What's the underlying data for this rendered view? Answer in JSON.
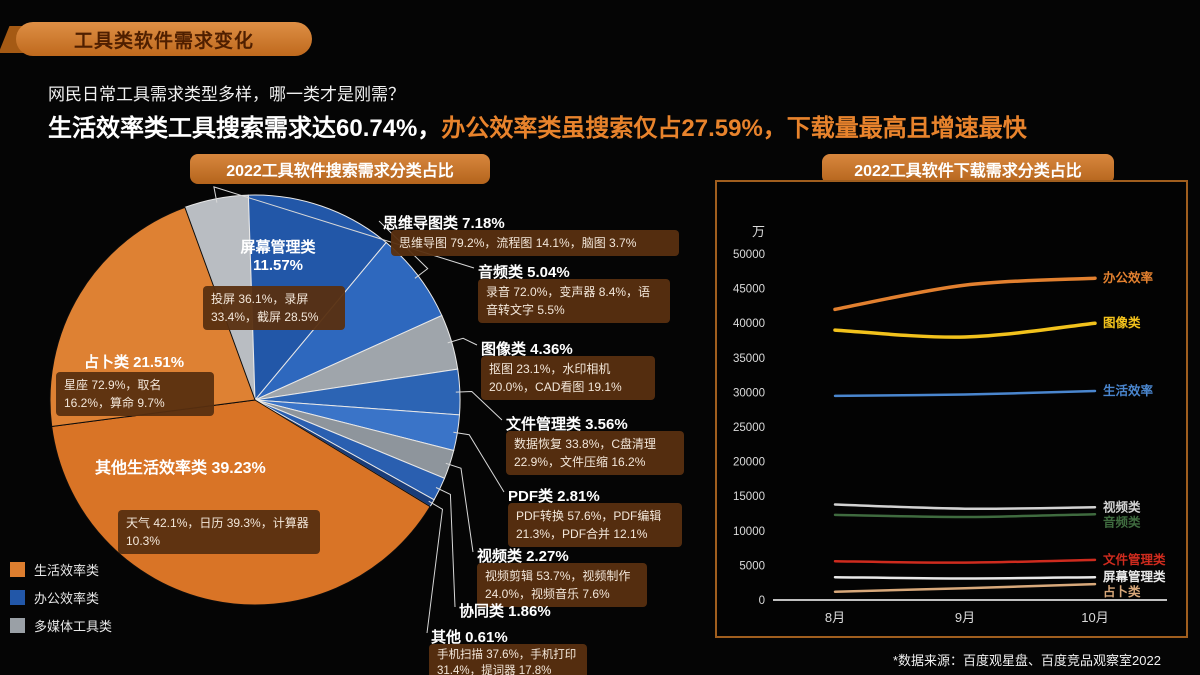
{
  "page": {
    "title_badge": "工具类软件需求变化",
    "subtitle": "网民日常工具需求类型多样，哪一类才是刚需？",
    "headline_white": "生活效率类工具搜索需求达60.74%，",
    "headline_orange": "办公效率类虽搜索仅占27.59%，下载量最高且增速最快",
    "source": "*数据来源：百度观星盘、百度竞品观察室2022"
  },
  "colors": {
    "accent_orange": "#dd7e2f",
    "office_blue": "#2257a8",
    "media_gray": "#9aa0a6",
    "callout_box": "#582f10"
  },
  "legend": [
    {
      "label": "生活效率类",
      "color": "#dd7e2f"
    },
    {
      "label": "办公效率类",
      "color": "#2257a8"
    },
    {
      "label": "多媒体工具类",
      "color": "#9aa0a6"
    }
  ],
  "chart_data": [
    {
      "type": "pie",
      "title": "2022工具软件搜索需求分类占比",
      "slices": [
        {
          "name": "音频类",
          "pct": 5.04,
          "group": "多媒体工具类",
          "color": "#b9bdc2",
          "label": "音频类 5.04%",
          "detail": "录音 72.0%，变声器 8.4%，语音转文字 5.5%"
        },
        {
          "name": "屏幕管理类",
          "pct": 11.57,
          "group": "办公效率类",
          "color": "#2257a8",
          "label": "屏幕管理类 11.57%",
          "detail": "投屏 36.1%，录屏 33.4%，截屏 28.5%"
        },
        {
          "name": "思维导图类",
          "pct": 7.18,
          "group": "办公效率类",
          "color": "#2e68be",
          "label": "思维导图类 7.18%",
          "detail": "思维导图 79.2%，流程图 14.1%，脑图 3.7%"
        },
        {
          "name": "图像类",
          "pct": 4.36,
          "group": "多媒体工具类",
          "color": "#9fa5ab",
          "label": "图像类 4.36%",
          "detail": "抠图 23.1%，水印相机 20.0%，CAD看图 19.1%"
        },
        {
          "name": "文件管理类",
          "pct": 3.56,
          "group": "办公效率类",
          "color": "#2c64b4",
          "label": "文件管理类 3.56%",
          "detail": "数据恢复 33.8%，C盘清理 22.9%，文件压缩 16.2%"
        },
        {
          "name": "PDF类",
          "pct": 2.81,
          "group": "办公效率类",
          "color": "#3a74c8",
          "label": "PDF类 2.81%",
          "detail": "PDF转换 57.6%，PDF编辑 21.3%，PDF合并 12.1%"
        },
        {
          "name": "视频类",
          "pct": 2.27,
          "group": "多媒体工具类",
          "color": "#8e959c",
          "label": "视频类 2.27%",
          "detail": "视频剪辑 53.7%，视频制作 24.0%，视频音乐 7.6%"
        },
        {
          "name": "协同类",
          "pct": 1.86,
          "group": "办公效率类",
          "color": "#2a5fb0",
          "label": "协同类 1.86%",
          "detail": ""
        },
        {
          "name": "其他",
          "pct": 0.61,
          "group": "办公效率类",
          "color": "#1a3c78",
          "label": "其他 0.61%",
          "detail": "手机扫描 37.6%，手机打印 31.4%，提词器 17.8%"
        },
        {
          "name": "其他生活效率类",
          "pct": 39.23,
          "group": "生活效率类",
          "color": "#d97426",
          "label": "其他生活效率类 39.23%",
          "detail": "天气 42.1%，日历 39.3%，计算器 10.3%"
        },
        {
          "name": "占卜类",
          "pct": 21.51,
          "group": "生活效率类",
          "color": "#de8133",
          "label": "占卜类 21.51%",
          "detail": "星座 72.9%，取名 16.2%，算命 9.7%"
        }
      ]
    },
    {
      "type": "line",
      "title": "2022工具软件下载需求分类占比",
      "ylabel": "万",
      "categories": [
        "8月",
        "9月",
        "10月"
      ],
      "ylim": [
        0,
        50000
      ],
      "yticks": [
        0,
        5000,
        10000,
        15000,
        20000,
        25000,
        30000,
        35000,
        40000,
        45000,
        50000
      ],
      "legend_position": "right-of-line-end",
      "grid": false,
      "series": [
        {
          "name": "办公效率",
          "color": "#e2802f",
          "lw": 3.5,
          "values": [
            42000,
            45500,
            46500
          ]
        },
        {
          "name": "图像类",
          "color": "#f2c21c",
          "lw": 3.5,
          "values": [
            39000,
            38000,
            40000
          ]
        },
        {
          "name": "生活效率",
          "color": "#4a86ce",
          "lw": 2.5,
          "values": [
            29500,
            29700,
            30200
          ]
        },
        {
          "name": "视频类",
          "color": "#d2d2d2",
          "lw": 2.5,
          "values": [
            13800,
            13200,
            13400
          ]
        },
        {
          "name": "音频类",
          "color": "#3f6b3f",
          "lw": 2.5,
          "values": [
            12300,
            12000,
            12400
          ]
        },
        {
          "name": "文件管理类",
          "color": "#ce2b1e",
          "lw": 2.5,
          "values": [
            5600,
            5400,
            5800
          ]
        },
        {
          "name": "屏幕管理类",
          "color": "#e9e9e9",
          "lw": 2.5,
          "values": [
            3300,
            3100,
            3300
          ]
        },
        {
          "name": "占卜类",
          "color": "#d8a87a",
          "lw": 2.5,
          "values": [
            1200,
            1700,
            2300
          ]
        }
      ]
    }
  ]
}
